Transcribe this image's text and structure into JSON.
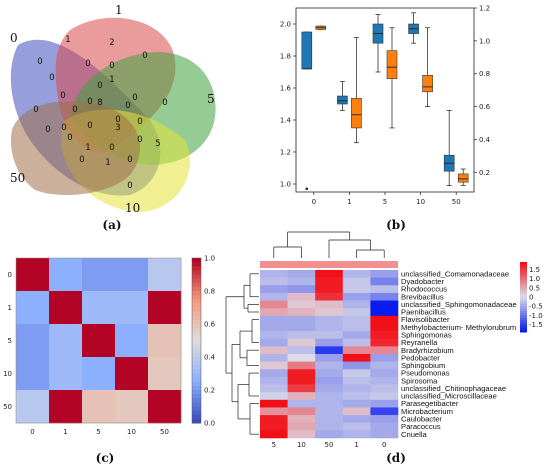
{
  "panels": [
    "(a)",
    "(b)",
    "(c)",
    "(d)"
  ],
  "chart_data": [
    {
      "panel": "(a)",
      "type": "venn",
      "sets": [
        {
          "name": "0",
          "color": "#3f4fbf"
        },
        {
          "name": "1",
          "color": "#d94a4a"
        },
        {
          "name": "5",
          "color": "#3ea33e"
        },
        {
          "name": "10",
          "color": "#e3e33a"
        },
        {
          "name": "50",
          "color": "#a0704a"
        }
      ],
      "region_values": [
        "0",
        "1",
        "0",
        "0",
        "0",
        "2",
        "0",
        "1",
        "0",
        "0",
        "0",
        "0",
        "0",
        "0",
        "0",
        "0",
        "8",
        "0",
        "0",
        "0",
        "0",
        "0",
        "0",
        "3",
        "0",
        "5",
        "1",
        "0",
        "1",
        "0",
        "0",
        "0"
      ]
    },
    {
      "panel": "(b)",
      "type": "box",
      "categories": [
        "0",
        "1",
        "5",
        "10",
        "50"
      ],
      "left_axis": {
        "ylim": [
          0.95,
          2.1
        ],
        "ticks": [
          "1.0",
          "1.2",
          "1.4",
          "1.6",
          "1.8",
          "2.0"
        ],
        "color": "#1f77b4"
      },
      "right_axis": {
        "ylim": [
          0.08,
          1.2
        ],
        "ticks": [
          "0.2",
          "0.4",
          "0.6",
          "0.8",
          "1.0",
          "1.2"
        ],
        "color": "#ff7f0e"
      },
      "series": [
        {
          "axis": "left",
          "color": "#1f77b4",
          "boxes": [
            {
              "min": 1.72,
              "q1": 1.72,
              "median": 1.72,
              "q3": 1.95,
              "max": 1.95,
              "outliers": [
                0.97
              ]
            },
            {
              "min": 1.46,
              "q1": 1.5,
              "median": 1.52,
              "q3": 1.55,
              "max": 1.64,
              "outliers": []
            },
            {
              "min": 1.7,
              "q1": 1.88,
              "median": 1.94,
              "q3": 2.0,
              "max": 2.06,
              "outliers": []
            },
            {
              "min": 1.88,
              "q1": 1.94,
              "median": 1.97,
              "q3": 2.0,
              "max": 2.07,
              "outliers": []
            },
            {
              "min": 0.99,
              "q1": 1.08,
              "median": 1.13,
              "q3": 1.18,
              "max": 1.46,
              "outliers": []
            }
          ]
        },
        {
          "axis": "right",
          "color": "#ff7f0e",
          "boxes": [
            {
              "min": 1.07,
              "q1": 1.07,
              "median": 1.08,
              "q3": 1.09,
              "max": 1.09,
              "outliers": []
            },
            {
              "min": 0.38,
              "q1": 0.47,
              "median": 0.55,
              "q3": 0.65,
              "max": 1.02,
              "outliers": []
            },
            {
              "min": 0.47,
              "q1": 0.77,
              "median": 0.84,
              "q3": 0.94,
              "max": 1.08,
              "outliers": []
            },
            {
              "min": 0.6,
              "q1": 0.69,
              "median": 0.72,
              "q3": 0.79,
              "max": 1.08,
              "outliers": []
            },
            {
              "min": 0.12,
              "q1": 0.14,
              "median": 0.16,
              "q3": 0.19,
              "max": 0.22,
              "outliers": []
            }
          ]
        }
      ]
    },
    {
      "panel": "(c)",
      "type": "heatmap",
      "xlabels": [
        "0",
        "1",
        "5",
        "10",
        "50"
      ],
      "ylabels": [
        "0",
        "1",
        "5",
        "10",
        "50"
      ],
      "matrix": [
        [
          1.0,
          0.25,
          0.2,
          0.2,
          0.38
        ],
        [
          0.25,
          1.0,
          0.3,
          0.3,
          1.0
        ],
        [
          0.2,
          0.3,
          1.0,
          0.25,
          0.6
        ],
        [
          0.2,
          0.3,
          0.25,
          1.0,
          0.58
        ],
        [
          0.38,
          1.0,
          0.6,
          0.58,
          1.0
        ]
      ],
      "colorbar": {
        "range": [
          0.0,
          1.0
        ],
        "ticks": [
          "0.0",
          "0.2",
          "0.4",
          "0.6",
          "0.8",
          "1.0"
        ]
      }
    },
    {
      "panel": "(d)",
      "type": "heatmap",
      "xlabels": [
        "5",
        "10",
        "50",
        "1",
        "0"
      ],
      "ylabels": [
        "unclassified_Comamonadaceae",
        "Dyadobacter",
        "Rhodococcus",
        "Brevibacillus",
        "unclassified_Sphingomonadaceae",
        "Paenibacillus",
        "Flavisolibacter",
        "Methylobacterium- Methylorubrum",
        "Sphingomonas",
        "Reyranella",
        "Bradyrhizobium",
        "Pedobacter",
        "Sphingobium",
        "Pseudomonas",
        "Spirosoma",
        "unclassified_Chitinophagaceae",
        "unclassified_Microscillaceae",
        "Parasegetibacter",
        "Microbacterium",
        "Caulobacter",
        "Paracoccus",
        "Cnuella"
      ],
      "matrix": [
        [
          -0.4,
          -0.5,
          1.9,
          -0.4,
          -0.6
        ],
        [
          -0.3,
          -0.4,
          1.8,
          -0.2,
          -0.9
        ],
        [
          -0.6,
          -0.7,
          1.8,
          -0.2,
          -0.3
        ],
        [
          -0.4,
          0.3,
          1.6,
          -0.6,
          -0.9
        ],
        [
          0.8,
          0.2,
          0.3,
          -0.4,
          -1.9
        ],
        [
          0.5,
          0.4,
          0.2,
          -0.2,
          -1.9
        ],
        [
          -0.5,
          -0.5,
          -0.4,
          -0.3,
          1.9
        ],
        [
          -0.5,
          -0.5,
          -0.4,
          -0.3,
          1.9
        ],
        [
          -0.4,
          -0.3,
          -0.3,
          -0.5,
          1.8
        ],
        [
          -0.5,
          0.2,
          -0.6,
          -0.3,
          1.7
        ],
        [
          0.3,
          -0.3,
          -1.6,
          0.8,
          0.8
        ],
        [
          -0.4,
          0.0,
          -0.6,
          1.9,
          -0.6
        ],
        [
          0.2,
          0.9,
          -0.4,
          -0.7,
          -0.4
        ],
        [
          -0.5,
          1.8,
          -0.5,
          -0.2,
          -0.5
        ],
        [
          -0.4,
          1.8,
          -0.6,
          -0.3,
          -0.4
        ],
        [
          -0.3,
          1.5,
          -0.5,
          -0.4,
          -0.3
        ],
        [
          -0.1,
          0.4,
          -0.4,
          -0.3,
          -0.2
        ],
        [
          1.9,
          -0.4,
          -0.4,
          -0.5,
          -0.6
        ],
        [
          0.7,
          0.8,
          -0.4,
          0.3,
          -1.5
        ],
        [
          1.8,
          0.4,
          -0.4,
          -0.5,
          -0.6
        ],
        [
          1.8,
          0.5,
          -0.4,
          -0.3,
          -0.5
        ],
        [
          1.9,
          0.3,
          -0.5,
          -0.4,
          -0.5
        ]
      ],
      "colorbar": {
        "range": [
          -1.9,
          1.9
        ],
        "ticks": [
          "1.5",
          "1.0",
          "0.5",
          "0",
          "-0.5",
          "-1.0",
          "-1.5"
        ]
      },
      "group_bar_color": "#f28f8f"
    }
  ]
}
